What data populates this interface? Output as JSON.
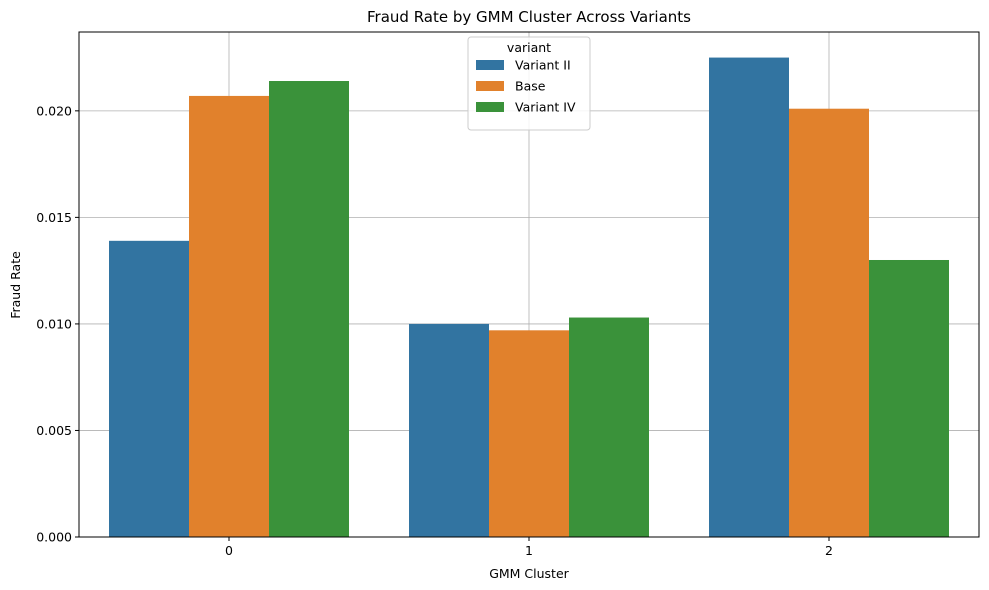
{
  "chart_data": {
    "type": "bar",
    "title": "Fraud Rate by GMM Cluster Across Variants",
    "xlabel": "GMM Cluster",
    "ylabel": "Fraud Rate",
    "categories": [
      "0",
      "1",
      "2"
    ],
    "series": [
      {
        "name": "Variant II",
        "color": "#3274a1",
        "values": [
          0.0139,
          0.01,
          0.0225
        ]
      },
      {
        "name": "Base",
        "color": "#e1812c",
        "values": [
          0.0207,
          0.0097,
          0.0201
        ]
      },
      {
        "name": "Variant IV",
        "color": "#3a923a",
        "values": [
          0.0214,
          0.0103,
          0.013
        ]
      }
    ],
    "ylim": [
      0,
      0.0237
    ],
    "yticks": [
      "0.000",
      "0.005",
      "0.010",
      "0.015",
      "0.020"
    ],
    "ytick_values": [
      0,
      0.005,
      0.01,
      0.015,
      0.02
    ],
    "grid": true,
    "legend": {
      "title": "variant",
      "placement": "top-center"
    }
  }
}
